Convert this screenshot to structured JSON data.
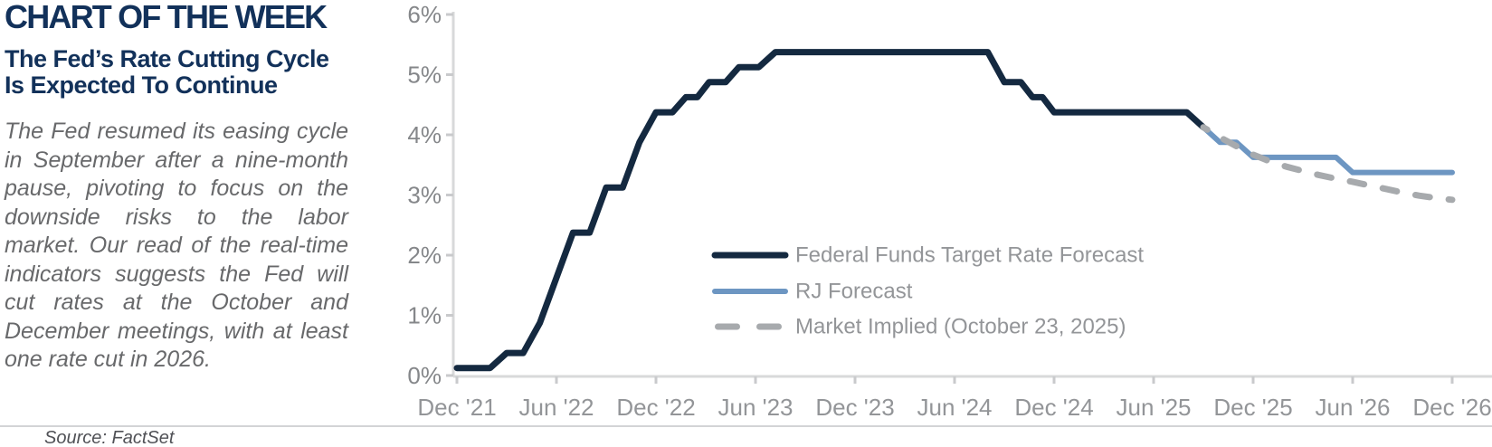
{
  "header": {
    "title": "CHART OF THE WEEK",
    "subtitle_line1": "The Fed’s Rate Cutting Cycle",
    "subtitle_line2": "Is Expected To Continue",
    "paragraph": "The Fed resumed its easing cycle in September after a nine-month pause, pivoting to focus on the downside risks to the labor market. Our read of the real-time indicators suggests the Fed will cut rates at the October and December meetings, with at least one rate cut in 2026."
  },
  "footer": {
    "source": "Source: FactSet"
  },
  "colors": {
    "title_navy": "#12315a",
    "fed_line": "#142940",
    "rj_line": "#6d96c2",
    "market_line": "#a7aaad",
    "axis": "#d8d9da",
    "tick": "#c9cacc",
    "y_label": "#85878a",
    "x_label": "#939598",
    "legend_text": "#939598"
  },
  "chart_data": {
    "type": "line",
    "x_unit": "months since Dec 2021",
    "xlim": [
      0,
      60
    ],
    "ylim": [
      0,
      6
    ],
    "grid": false,
    "legend_position": "inside right-center",
    "x_tick_months": [
      0,
      6,
      12,
      18,
      24,
      30,
      36,
      42,
      48,
      54,
      60
    ],
    "x_tick_labels": [
      "Dec '21",
      "Jun '22",
      "Dec '22",
      "Jun '23",
      "Dec '23",
      "Jun '24",
      "Dec '24",
      "Jun '25",
      "Dec '25",
      "Jun '26",
      "Dec '26"
    ],
    "y_tick_values": [
      0,
      1,
      2,
      3,
      4,
      5,
      6
    ],
    "y_tick_labels": [
      "0%",
      "1%",
      "2%",
      "3%",
      "4%",
      "5%",
      "6%"
    ],
    "series": [
      {
        "name": "Federal Funds Target Rate Forecast",
        "key": "fed-funds",
        "color": "#142940",
        "width": 7,
        "dash": null,
        "points": [
          [
            0,
            0.125
          ],
          [
            2,
            0.125
          ],
          [
            3,
            0.375
          ],
          [
            4,
            0.375
          ],
          [
            5,
            0.875
          ],
          [
            6,
            1.625
          ],
          [
            7,
            2.375
          ],
          [
            8,
            2.375
          ],
          [
            9,
            3.125
          ],
          [
            10,
            3.125
          ],
          [
            11,
            3.875
          ],
          [
            12,
            4.375
          ],
          [
            13,
            4.375
          ],
          [
            13.8,
            4.625
          ],
          [
            14.5,
            4.625
          ],
          [
            15.2,
            4.875
          ],
          [
            16.2,
            4.875
          ],
          [
            17,
            5.125
          ],
          [
            18.2,
            5.125
          ],
          [
            19.2,
            5.375
          ],
          [
            32,
            5.375
          ],
          [
            33,
            4.875
          ],
          [
            34,
            4.875
          ],
          [
            34.7,
            4.625
          ],
          [
            35.3,
            4.625
          ],
          [
            36,
            4.375
          ],
          [
            44,
            4.375
          ],
          [
            45,
            4.125
          ]
        ]
      },
      {
        "name": "RJ Forecast",
        "key": "rj-forecast",
        "color": "#6d96c2",
        "width": 6,
        "dash": null,
        "points": [
          [
            45,
            4.125
          ],
          [
            46,
            3.875
          ],
          [
            47,
            3.875
          ],
          [
            48,
            3.625
          ],
          [
            53,
            3.625
          ],
          [
            54,
            3.375
          ],
          [
            60,
            3.375
          ]
        ]
      },
      {
        "name": "Market Implied (October 23, 2025)",
        "key": "market-implied",
        "color": "#a7aaad",
        "width": 7,
        "dash": [
          16,
          21
        ],
        "dash_offset": 11,
        "points": [
          [
            45,
            4.125
          ],
          [
            46,
            3.96
          ],
          [
            47,
            3.81
          ],
          [
            48,
            3.67
          ],
          [
            49,
            3.56
          ],
          [
            50,
            3.47
          ],
          [
            51,
            3.4
          ],
          [
            52,
            3.33
          ],
          [
            53,
            3.27
          ],
          [
            54,
            3.22
          ],
          [
            55,
            3.16
          ],
          [
            56,
            3.1
          ],
          [
            57,
            3.04
          ],
          [
            58,
            2.99
          ],
          [
            59,
            2.95
          ],
          [
            60,
            2.92
          ]
        ]
      }
    ]
  }
}
